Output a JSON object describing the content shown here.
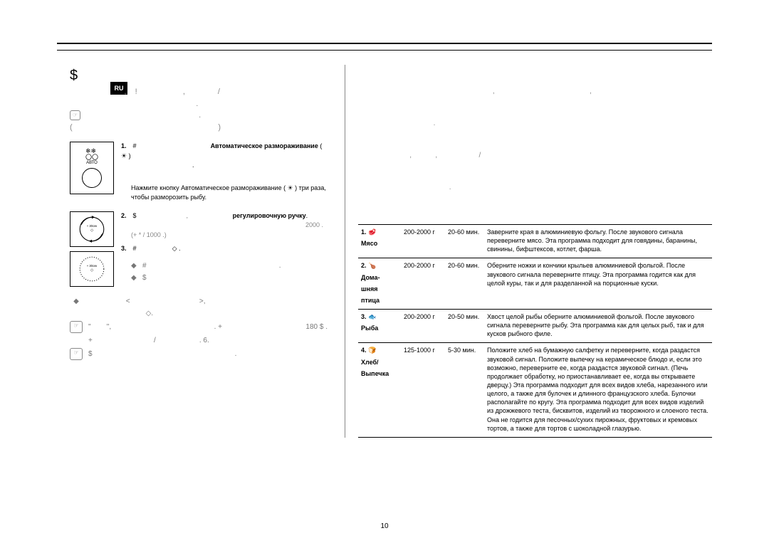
{
  "badge": "RU",
  "page_number": "10",
  "left": {
    "heading_symbol": "$",
    "heading_faint_line1": "                         ,    !                     ,               /",
    "heading_faint_line2": "                                                          .",
    "heading_faint_line3": "                                                     .",
    "heading_faint_line4": "(                                                                   )",
    "step1_num": "1.",
    "step1_hash": "#",
    "step1_bold": "Автоматическое размораживание",
    "step1_after": "( ☀ )",
    "step1_dot": ".",
    "example_label": "",
    "example_text": "Нажмите кнопку Автоматическое размораживание ( ☀ ) три раза, чтобы разморозить рыбу.",
    "step2_num": "2.",
    "step2_dollar": "$",
    "step2_gap": "                           ,",
    "step2_bold": "регулировочную ручку",
    "step2_dot": ".",
    "step2_right": "2000 .",
    "step2_sub": "(+       *       /               1000 .)",
    "step3_num": "3.",
    "step3_hash": "#",
    "step3_diamond": "◇",
    "step3_dot": ".",
    "res_row1_sym": "◆",
    "res_row1_txt": "#                                                                   .",
    "res_row2_sym": "◆",
    "res_row2_txt": "$",
    "note_r1_sym": "◆",
    "note_r1_txt": "                   <                                   >,",
    "note_r1_after": "                             ◇.",
    "note_r2_sym": "☞",
    "note_r2_txt": "\"        \",                                                    . +",
    "note_r2_right": "180 $ .",
    "note_r3_txt": "+                               /                      . 6.",
    "note_r4_sym": "☞",
    "note_r4_txt": "$                                                                        .",
    "icon_label_auto": "АВТО",
    "icon_label_30sec": "+ 30сек"
  },
  "right": {
    "intro1": "                                                                    ,                                                ,",
    "intro2": "                                      .",
    "intro3": "                          ,            ,                     /",
    "intro4": "                                              .",
    "rows": [
      {
        "num": "1.",
        "icon": "🥩",
        "label": "Мясо",
        "portion": "200-2000 г",
        "time": "20-60 мин.",
        "rec": "Заверните края в алюминиевую фольгу. После звукового сигнала переверните мясо. Эта программа подходит для говядины, баранины, свинины, бифштексов, котлет, фарша."
      },
      {
        "num": "2.",
        "icon": "🍗",
        "label": "Дома-\nшняя\nптица",
        "portion": "200-2000 г",
        "time": "20-60 мин.",
        "rec": "Оберните ножки и кончики крыльев алюминиевой фольгой. После звукового сигнала переверните птицу. Эта программа годится как для целой куры, так и для разделанной на порционные куски."
      },
      {
        "num": "3.",
        "icon": "🐟",
        "label": "Рыба",
        "portion": "200-2000 г",
        "time": "20-50 мин.",
        "rec": "Хвост целой рыбы оберните алюминиевой фольгой. После звукового сигнала переверните рыбу. Эта программа                          как для целых рыб, так и для кусков рыбного филе."
      },
      {
        "num": "4.",
        "icon": "🍞",
        "label": "Хлеб/\nВыпечка",
        "portion": "125-1000 г",
        "time": "5-30 мин.",
        "rec": "Положите хлеб на бумажную салфетку и переверните, когда раздастся звуковой сигнал. Положите выпечку на керамическое блюдо и, если это возможно, переверните ее, когда раздастся звуковой сигнал. (Печь продолжает обработку, но приостанавливает ее, когда вы открываете дверцу.) Эта программа подходит для всех видов хлеба, нарезанного или целого, а также для булочек и длинного французского хлеба. Булочки располагайте по кругу. Эта программа подходит для всех видов изделий из дрожжевого теста, бисквитов, изделий из творожного и слоеного теста. Она не годится для песочных/сухих пирожных, фруктовых и кремовых тортов, а также для тортов с шоколадной глазурью."
      }
    ]
  }
}
